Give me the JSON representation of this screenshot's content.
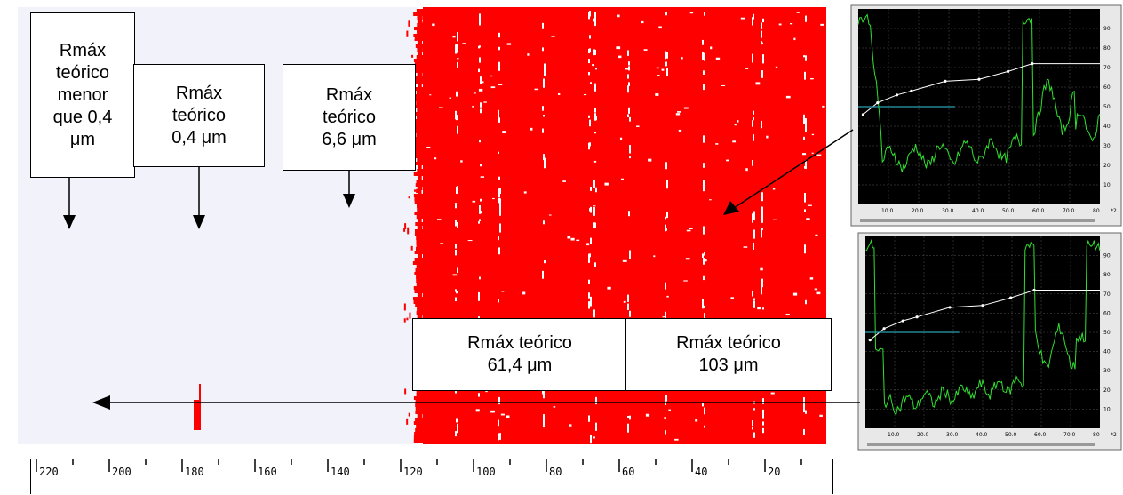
{
  "labels": {
    "box1": "Rmáx\nteórico\nmenor\nque 0,4\nμm",
    "box2": "Rmáx\nteórico\n0,4 μm",
    "box3": "Rmáx\nteórico\n6,6 μm",
    "box4": "Rmáx teórico\n61,4 μm",
    "box5": "Rmáx teórico\n103 μm"
  },
  "scale": {
    "ticks": [
      "220",
      "200",
      "180",
      "160",
      "140",
      "120",
      "100",
      "80",
      "60",
      "40",
      "20"
    ]
  },
  "scope": {
    "y_ticks": [
      "90",
      "80",
      "70",
      "60",
      "50",
      "40",
      "30",
      "20",
      "10"
    ],
    "x_ticks": [
      "10.0",
      "20.0",
      "30.0",
      "40.0",
      "50.0",
      "60.0",
      "70.0",
      "80"
    ],
    "corner_label": "*2"
  },
  "colors": {
    "background": "#f2f2fb",
    "band": "#ff0000",
    "trace": "#2fe02f",
    "scope_bg": "#000000",
    "cursor": "#2aa0b0"
  }
}
